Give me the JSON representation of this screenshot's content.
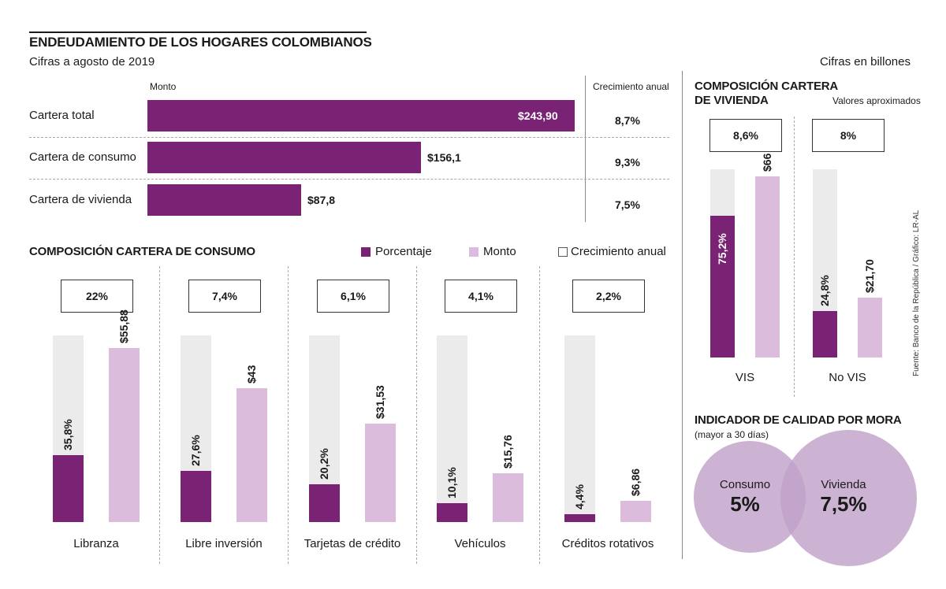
{
  "header": {
    "title": "ENDEUDAMIENTO DE LOS HOGARES COLOMBIANOS",
    "subtitle": "Cifras a agosto de 2019",
    "units": "Cifras en billones"
  },
  "colors": {
    "porcentaje": "#7a2374",
    "monto": "#dcbcdc",
    "crecimiento": "#ebebeb"
  },
  "chart_data": [
    {
      "type": "bar",
      "orientation": "horizontal",
      "title": "",
      "value_header": "Monto",
      "growth_header": "Crecimiento anual",
      "categories": [
        "Cartera total",
        "Cartera de consumo",
        "Cartera de vivienda"
      ],
      "values": [
        243.9,
        156.1,
        87.8
      ],
      "value_labels": [
        "$243,90",
        "$156,1",
        "$87,8"
      ],
      "growth": [
        "8,7%",
        "9,3%",
        "7,5%"
      ]
    },
    {
      "type": "bar",
      "title": "COMPOSICIÓN CARTERA DE CONSUMO",
      "legend": [
        "Porcentaje",
        "Monto",
        "Crecimiento anual"
      ],
      "categories": [
        "Libranza",
        "Libre inversión",
        "Tarjetas de crédito",
        "Vehículos",
        "Créditos rotativos"
      ],
      "series": [
        {
          "name": "Porcentaje",
          "values": [
            35.8,
            27.6,
            20.2,
            10.1,
            4.4
          ],
          "labels": [
            "35,8%",
            "27,6%",
            "20,2%",
            "10,1%",
            "4,4%"
          ]
        },
        {
          "name": "Monto",
          "values": [
            55.88,
            43,
            31.53,
            15.76,
            6.86
          ],
          "labels": [
            "$55,88",
            "$43",
            "$31,53",
            "$15,76",
            "$6,86"
          ]
        }
      ],
      "growth": [
        "22%",
        "7,4%",
        "6,1%",
        "4,1%",
        "2,2%"
      ],
      "ylim_porcentaje": [
        0,
        100
      ],
      "ylim_monto": [
        0,
        75
      ]
    },
    {
      "type": "bar",
      "title": "COMPOSICIÓN CARTERA DE VIVIENDA",
      "note": "Valores aproximados",
      "categories": [
        "VIS",
        "No VIS"
      ],
      "series": [
        {
          "name": "Porcentaje",
          "values": [
            75.2,
            24.8
          ],
          "labels": [
            "75,2%",
            "24,8%"
          ]
        },
        {
          "name": "Monto",
          "values": [
            66,
            21.7
          ],
          "labels": [
            "$66",
            "$21,70"
          ]
        }
      ],
      "growth": [
        "8,6%",
        "8%"
      ],
      "ylim_porcentaje": [
        0,
        100
      ],
      "ylim_monto": [
        0,
        75
      ]
    },
    {
      "type": "venn",
      "title": "INDICADOR DE CALIDAD POR MORA",
      "subtitle": "(mayor a 30 días)",
      "sets": [
        {
          "label": "Consumo",
          "value": 5,
          "value_label": "5%"
        },
        {
          "label": "Vivienda",
          "value": 7.5,
          "value_label": "7,5%"
        }
      ]
    }
  ],
  "source": "Fuente: Banco de la República / Gráfico: LR-AL"
}
